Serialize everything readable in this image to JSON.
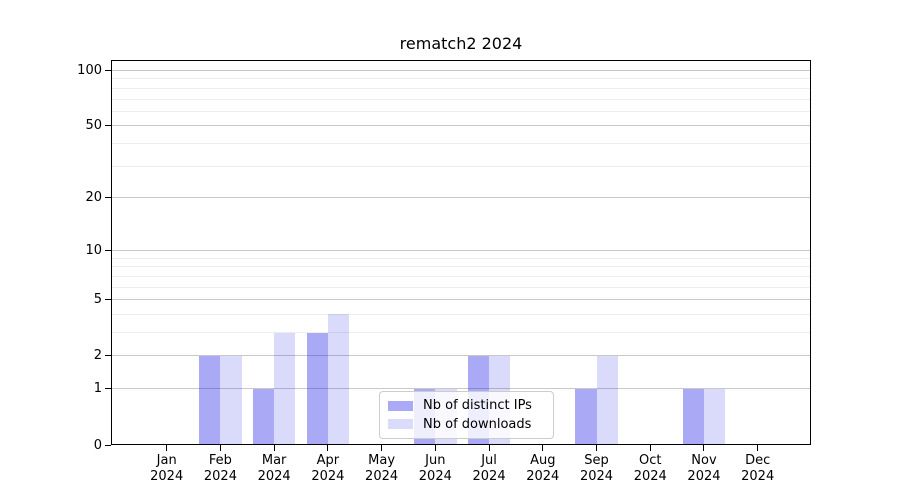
{
  "figure": {
    "background": "#ffffff",
    "text_color": "#000000",
    "spine_color": "#000000",
    "grid_major_color": "#c9c9c9",
    "grid_minor_color": "#ededed"
  },
  "legend": {
    "background": "rgba(255,255,255,0.8)",
    "border_color": "#cccccc"
  },
  "chart_data": {
    "type": "bar",
    "title": "rematch2 2024",
    "xlabel": "",
    "ylabel": "",
    "categories": [
      "Jan 2024",
      "Feb 2024",
      "Mar 2024",
      "Apr 2024",
      "May 2024",
      "Jun 2024",
      "Jul 2024",
      "Aug 2024",
      "Sep 2024",
      "Oct 2024",
      "Nov 2024",
      "Dec 2024"
    ],
    "series": [
      {
        "name": "Nb of distinct IPs",
        "color": "rgba(30,30,230,0.38)",
        "color_effective_hex": "#a9a9f5",
        "values": [
          0,
          2,
          1,
          3,
          0,
          1,
          2,
          0,
          1,
          0,
          1,
          0
        ]
      },
      {
        "name": "Nb of downloads",
        "color": "rgba(30,30,230,0.165)",
        "color_effective_hex": "#dadaf9",
        "values": [
          0,
          2,
          3,
          4,
          0,
          1,
          2,
          0,
          2,
          0,
          1,
          0
        ]
      }
    ],
    "yscale": "log1p",
    "ylim": [
      0,
      114
    ],
    "y_major_ticks": [
      0,
      1,
      2,
      5,
      10,
      20,
      50,
      100
    ],
    "y_minor_ticks": [
      3,
      4,
      6,
      7,
      8,
      9,
      30,
      40,
      60,
      70,
      80,
      90
    ],
    "grid": "horizontal",
    "legend_position": "lower-center",
    "legend_entries": [
      "Nb of distinct IPs",
      "Nb of downloads"
    ]
  }
}
